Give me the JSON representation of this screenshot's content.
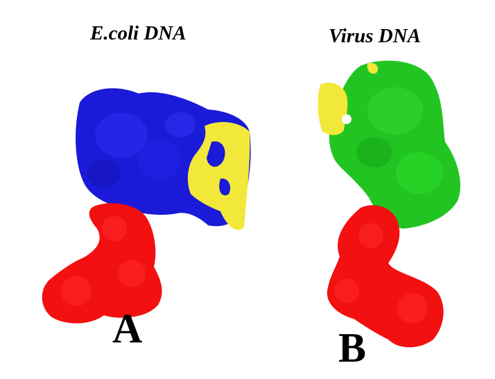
{
  "panels": [
    {
      "title": "E.coli DNA",
      "label": "A",
      "colors": {
        "protein": "#1a1ad8",
        "site": "#f2e83a",
        "ligand": "#f21010"
      }
    },
    {
      "title": "Virus DNA",
      "label": "B",
      "colors": {
        "protein": "#22c422",
        "site": "#f2e83a",
        "ligand": "#f21010"
      }
    }
  ]
}
